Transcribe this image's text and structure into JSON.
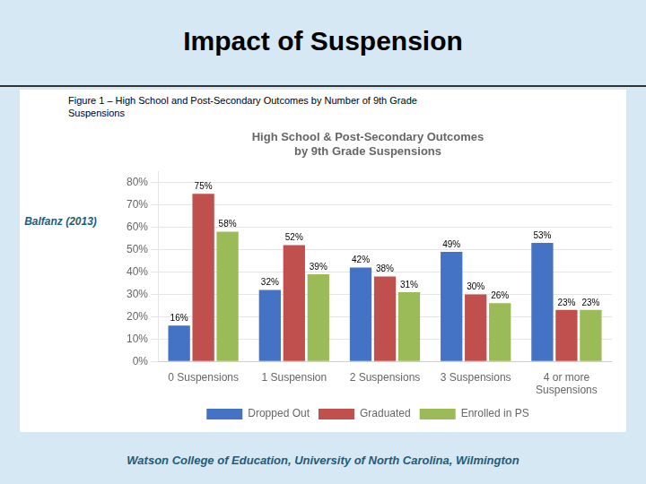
{
  "title": "Impact of Suspension",
  "annotations": [
    "Figure 1 – High School and Post-Secondary Outcomes by Number of 9th Grade\nSuspensions",
    "Balfanz (2013)",
    "Watson College of Education,  University of North Carolina, Wilmington"
  ],
  "chart_data": {
    "type": "bar",
    "title": "High School & Post-Secondary Outcomes\nby 9th Grade Suspensions",
    "categories": [
      "0 Suspensions",
      "1 Suspension",
      "2 Suspensions",
      "3 Suspensions",
      "4 or more\nSuspensions"
    ],
    "series": [
      {
        "name": "Dropped Out",
        "color": "#4472C4",
        "values": [
          16,
          32,
          42,
          49,
          53
        ],
        "value_labels": [
          "16%",
          "32%",
          "42%",
          "49%",
          "53%"
        ]
      },
      {
        "name": "Graduated",
        "color": "#C0504D",
        "values": [
          75,
          52,
          38,
          30,
          23
        ],
        "value_labels": [
          "75%",
          "52%",
          "38%",
          "30%",
          "23%"
        ]
      },
      {
        "name": "Enrolled in PS",
        "color": "#9BBB59",
        "values": [
          58,
          39,
          31,
          26,
          23
        ],
        "value_labels": [
          "58%",
          "39%",
          "31%",
          "26%",
          "23%"
        ]
      }
    ],
    "ylim": [
      0,
      85
    ],
    "yticks": [
      {
        "value": 0,
        "label": "0%"
      },
      {
        "value": 10,
        "label": "10%"
      },
      {
        "value": 20,
        "label": "20%"
      },
      {
        "value": 30,
        "label": "30%"
      },
      {
        "value": 40,
        "label": "40%"
      },
      {
        "value": 50,
        "label": "50%"
      },
      {
        "value": 60,
        "label": "60%"
      },
      {
        "value": 70,
        "label": "70%"
      },
      {
        "value": 80,
        "label": "80%"
      }
    ],
    "grid": true,
    "legend": "bottom",
    "data_labels": true
  }
}
